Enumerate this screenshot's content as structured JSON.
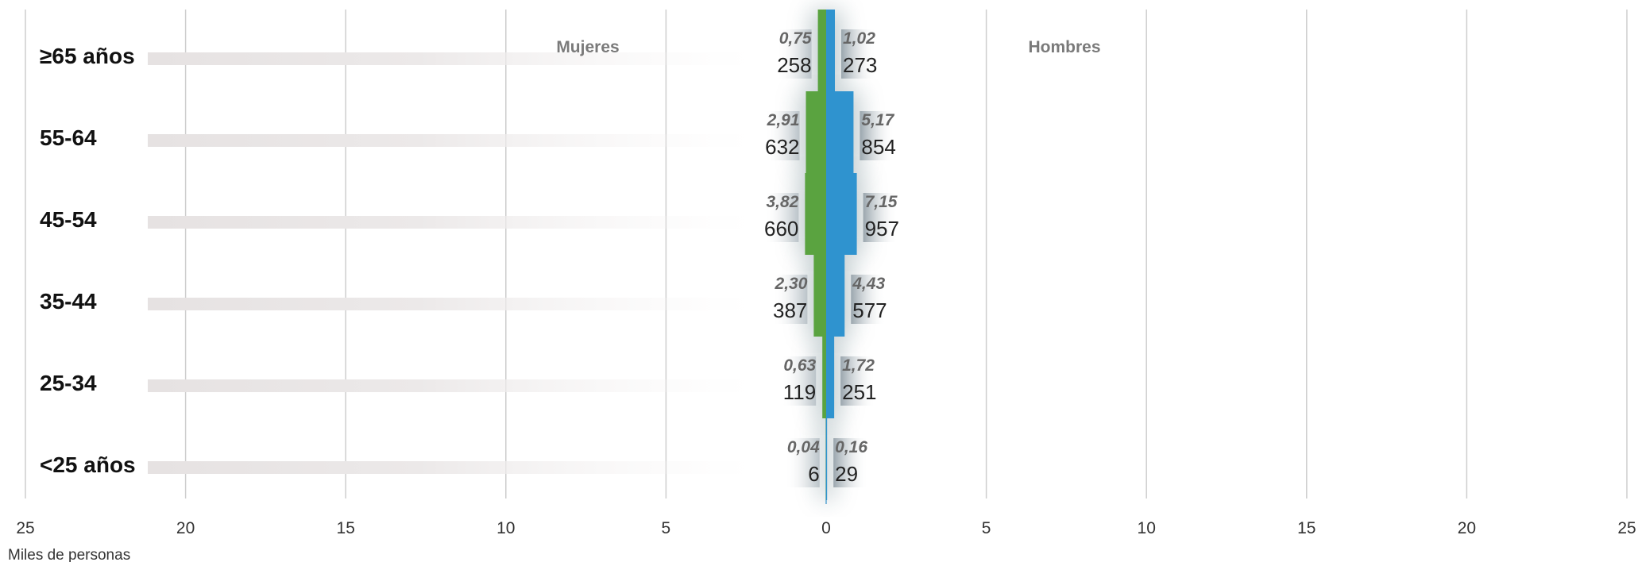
{
  "chart_data": {
    "type": "bar",
    "subtype": "population-pyramid",
    "unit_label": "Miles de personas",
    "xlim": [
      -25,
      25
    ],
    "x_ticks": [
      "25",
      "20",
      "15",
      "10",
      "5",
      "0",
      "5",
      "10",
      "15",
      "20",
      "25"
    ],
    "grid": true,
    "categories": [
      "≥65 años",
      "55-64",
      "45-54",
      "35-44",
      "25-34",
      "<25 años"
    ],
    "series": [
      {
        "name": "Mujeres",
        "side": "left",
        "color": "#5aa340",
        "values": [
          0.258,
          0.632,
          0.66,
          0.387,
          0.119,
          0.006
        ],
        "value_labels": [
          "258",
          "632",
          "660",
          "387",
          "119",
          "6"
        ],
        "pct_labels": [
          "0,75",
          "2,91",
          "3,82",
          "2,30",
          "0,63",
          "0,04"
        ]
      },
      {
        "name": "Hombres",
        "side": "right",
        "color": "#2f93cf",
        "values": [
          0.273,
          0.854,
          0.957,
          0.577,
          0.251,
          0.029
        ],
        "value_labels": [
          "273",
          "854",
          "957",
          "577",
          "251",
          "29"
        ],
        "pct_labels": [
          "1,02",
          "5,17",
          "7,15",
          "4,43",
          "1,72",
          "0,16"
        ]
      }
    ]
  }
}
